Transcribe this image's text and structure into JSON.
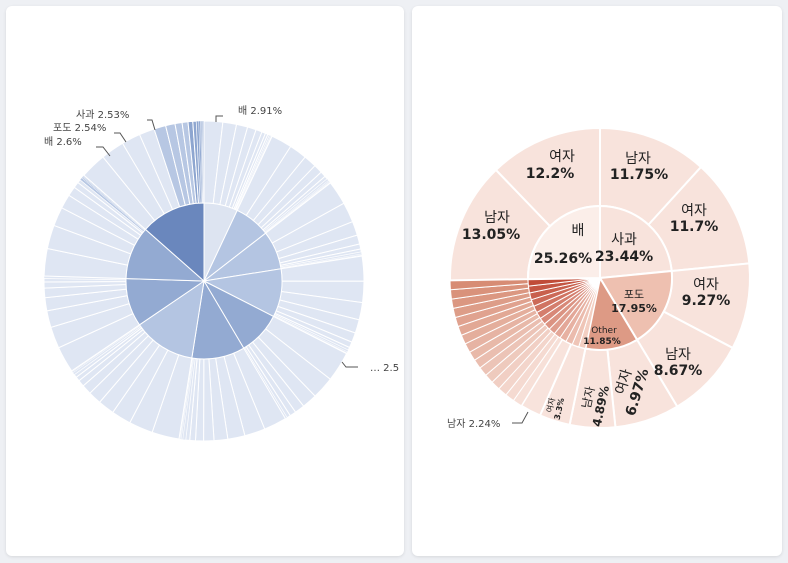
{
  "chart_data": [
    {
      "type": "sunburst",
      "colors": {
        "inner_dark": "#6a87bd",
        "inner_mid": "#93aad2",
        "inner_light": "#b4c5e2",
        "inner_pale": "#dde4f1",
        "outer_dark": "#8ea6d0",
        "outer_mid": "#b7c7e3",
        "outer_light": "#dfe6f3"
      },
      "inner_ring": [
        {
          "value": 7.0
        },
        {
          "value": 7.5
        },
        {
          "value": 8.0
        },
        {
          "value": 10.0
        },
        {
          "value": 9.0
        },
        {
          "value": 11.0
        },
        {
          "value": 13.0
        },
        {
          "value": 10.0
        },
        {
          "value": 11.0
        },
        {
          "value": 13.5
        }
      ],
      "outer_labels": [
        {
          "text": "배 2.91%"
        },
        {
          "text": "사과 2.53%"
        },
        {
          "text": "포도 2.54%"
        },
        {
          "text": "배 2.6%"
        },
        {
          "text": "… 2.5"
        }
      ]
    },
    {
      "type": "sunburst",
      "colors": {
        "base": "#f8e3dc",
        "pale": "#fbeee9",
        "mid": "#eec0b0",
        "strong": "#dd9a85",
        "dark": "#c9604c"
      },
      "inner_ring": [
        {
          "name": "사과",
          "value": 23.44
        },
        {
          "name": "포도",
          "value": 17.95
        },
        {
          "name": "Other",
          "value": 11.85
        },
        {
          "name": "",
          "value": 21.5
        },
        {
          "name": "배",
          "value": 25.26
        }
      ],
      "outer_ring": [
        {
          "name": "남자",
          "value": 11.75
        },
        {
          "name": "여자",
          "value": 11.7
        },
        {
          "name": "여자",
          "value": 9.27
        },
        {
          "name": "남자",
          "value": 8.67
        },
        {
          "name": "여자",
          "value": 6.97
        },
        {
          "name": "남자",
          "value": 4.89
        },
        {
          "name": "여자",
          "value": 3.3
        },
        {
          "name": "남자",
          "value": 2.24
        },
        {
          "name": "",
          "value": 15.96
        },
        {
          "name": "남자",
          "value": 13.05
        },
        {
          "name": "여자",
          "value": 12.2
        }
      ],
      "texts": {
        "apple_name": "사과",
        "apple_pct": "23.44%",
        "grape_name": "포도",
        "grape_pct": "17.95%",
        "other_name": "Other",
        "other_pct": "11.85%",
        "pear_name": "배",
        "pear_pct": "25.26%",
        "o1_name": "남자",
        "o1_pct": "11.75%",
        "o2_name": "여자",
        "o2_pct": "11.7%",
        "o3_name": "여자",
        "o3_pct": "9.27%",
        "o4_name": "남자",
        "o4_pct": "8.67%",
        "o5_name": "여자",
        "o5_pct": "6.97%",
        "o6_name": "남자",
        "o6_pct": "4.89%",
        "o7_name": "여자",
        "o7_pct": "3.3%",
        "o8_label": "남자 2.24%",
        "o10_name": "남자",
        "o10_pct": "13.05%",
        "o11_name": "여자",
        "o11_pct": "12.2%"
      }
    }
  ]
}
